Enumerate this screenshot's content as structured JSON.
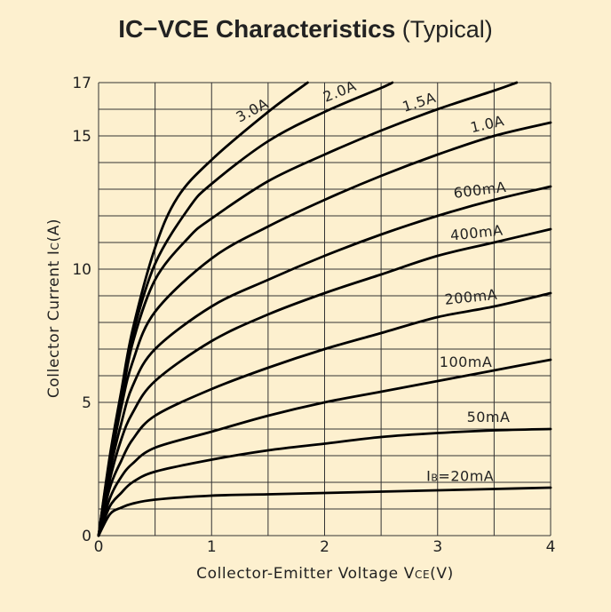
{
  "chart_data": {
    "type": "line",
    "title": {
      "ic": "I",
      "ic_sub": "C",
      "dash": "−",
      "vce": "V",
      "vce_sub": "CE",
      "main": " Characteristics",
      "suffix": " (Typical)"
    },
    "xlabel": {
      "text": "Collector-Emitter Voltage V",
      "sub": "CE",
      "unit": "(V)"
    },
    "ylabel": {
      "text": "Collector Current I",
      "sub": "C",
      "unit": "(A)"
    },
    "xlim": [
      0,
      4
    ],
    "ylim": [
      0,
      17
    ],
    "x_ticks": [
      0,
      1,
      2,
      3,
      4
    ],
    "y_ticks": [
      0,
      5,
      10,
      15,
      17
    ],
    "x_tick_labels": [
      "0",
      "1",
      "2",
      "3",
      "4"
    ],
    "y_tick_labels": [
      "0",
      "5",
      "10",
      "15",
      "17"
    ],
    "grid": true,
    "series": [
      {
        "name": "IB=20mA",
        "label": {
          "pre": "I",
          "sub": "B",
          "post": "=20mA"
        },
        "x": [
          0,
          0.1,
          0.2,
          0.3,
          0.5,
          1,
          1.5,
          2,
          2.5,
          3,
          3.5,
          4
        ],
        "y": [
          0,
          0.8,
          1.05,
          1.2,
          1.35,
          1.5,
          1.55,
          1.6,
          1.65,
          1.7,
          1.75,
          1.8
        ]
      },
      {
        "name": "50mA",
        "label": {
          "pre": "",
          "sub": "",
          "post": "50mA"
        },
        "x": [
          0,
          0.1,
          0.2,
          0.3,
          0.5,
          1,
          1.5,
          2,
          2.5,
          3,
          3.5,
          4
        ],
        "y": [
          0,
          1.1,
          1.6,
          2.0,
          2.4,
          2.85,
          3.2,
          3.45,
          3.7,
          3.85,
          3.95,
          4.0
        ]
      },
      {
        "name": "100mA",
        "label": {
          "pre": "",
          "sub": "",
          "post": "100mA"
        },
        "x": [
          0,
          0.1,
          0.2,
          0.3,
          0.5,
          1,
          1.5,
          2,
          2.5,
          3,
          3.5,
          4
        ],
        "y": [
          0,
          1.4,
          2.2,
          2.7,
          3.3,
          3.9,
          4.5,
          5.0,
          5.4,
          5.8,
          6.2,
          6.6
        ]
      },
      {
        "name": "200mA",
        "label": {
          "pre": "",
          "sub": "",
          "post": "200mA"
        },
        "x": [
          0,
          0.1,
          0.2,
          0.3,
          0.5,
          1,
          1.5,
          2,
          2.5,
          3,
          3.5,
          4
        ],
        "y": [
          0,
          1.8,
          2.8,
          3.6,
          4.5,
          5.5,
          6.3,
          7.0,
          7.6,
          8.2,
          8.6,
          9.1
        ]
      },
      {
        "name": "400mA",
        "label": {
          "pre": "",
          "sub": "",
          "post": "400mA"
        },
        "x": [
          0,
          0.1,
          0.2,
          0.3,
          0.5,
          1,
          1.5,
          2,
          2.5,
          3,
          3.5,
          4
        ],
        "y": [
          0,
          2.1,
          3.6,
          4.6,
          5.8,
          7.3,
          8.3,
          9.1,
          9.8,
          10.5,
          11.0,
          11.5
        ]
      },
      {
        "name": "600mA",
        "label": {
          "pre": "",
          "sub": "",
          "post": "600mA"
        },
        "x": [
          0,
          0.1,
          0.2,
          0.3,
          0.5,
          1,
          1.5,
          2,
          2.5,
          3,
          3.5,
          4
        ],
        "y": [
          0,
          2.4,
          4.2,
          5.6,
          7.0,
          8.6,
          9.6,
          10.5,
          11.3,
          12.0,
          12.6,
          13.1
        ]
      },
      {
        "name": "1.0A",
        "label": {
          "pre": "",
          "sub": "",
          "post": "1.0A"
        },
        "x": [
          0,
          0.1,
          0.2,
          0.3,
          0.5,
          1,
          1.5,
          2,
          2.5,
          3,
          3.5,
          4
        ],
        "y": [
          0,
          2.6,
          4.8,
          6.5,
          8.4,
          10.4,
          11.6,
          12.6,
          13.5,
          14.3,
          15.0,
          15.5
        ]
      },
      {
        "name": "1.5A",
        "label": {
          "pre": "",
          "sub": "",
          "post": "1.5A"
        },
        "x": [
          0,
          0.1,
          0.2,
          0.3,
          0.5,
          0.8,
          1,
          1.5,
          2,
          2.5,
          3,
          3.5,
          3.7
        ],
        "y": [
          0,
          2.8,
          5.0,
          7.2,
          9.6,
          11.2,
          11.9,
          13.3,
          14.3,
          15.2,
          16.0,
          16.7,
          17.0
        ]
      },
      {
        "name": "2.0A",
        "label": {
          "pre": "",
          "sub": "",
          "post": "2.0A"
        },
        "x": [
          0,
          0.1,
          0.2,
          0.3,
          0.5,
          0.8,
          1,
          1.5,
          2,
          2.5,
          2.6
        ],
        "y": [
          0,
          2.9,
          5.2,
          7.5,
          10.2,
          12.3,
          13.2,
          14.8,
          15.9,
          16.8,
          17.0
        ]
      },
      {
        "name": "3.0A",
        "label": {
          "pre": "",
          "sub": "",
          "post": "3.0A"
        },
        "x": [
          0,
          0.1,
          0.2,
          0.3,
          0.5,
          0.7,
          1,
          1.5,
          1.85
        ],
        "y": [
          0,
          3.0,
          5.4,
          7.7,
          10.8,
          12.7,
          14.1,
          15.9,
          17.0
        ]
      }
    ]
  }
}
